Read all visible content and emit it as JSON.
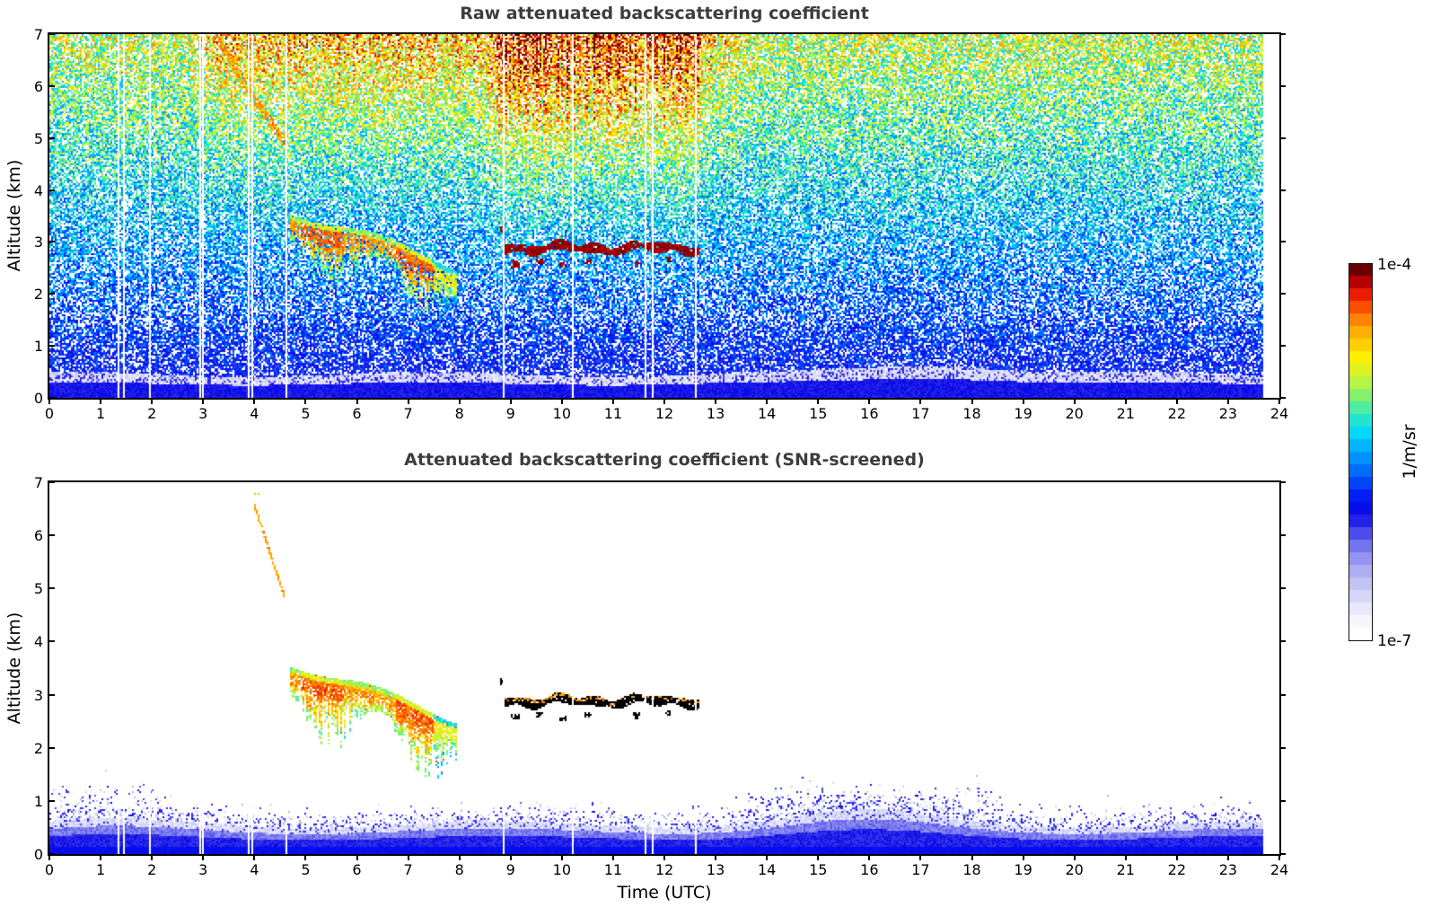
{
  "figure": {
    "background": "#ffffff",
    "title_color": "#3d3d3d"
  },
  "chart_data": {
    "type": "heatmap",
    "panels": [
      {
        "id": "raw",
        "title": "Raw attenuated backscattering coefficient",
        "xlabel": "",
        "ylabel": "Altitude (km)",
        "xlim": [
          0,
          24
        ],
        "ylim": [
          0,
          7
        ],
        "xticks": [
          0,
          1,
          2,
          3,
          4,
          5,
          6,
          7,
          8,
          9,
          10,
          11,
          12,
          13,
          14,
          15,
          16,
          17,
          18,
          19,
          20,
          21,
          22,
          23,
          24
        ],
        "yticks": [
          0,
          1,
          2,
          3,
          4,
          5,
          6,
          7
        ],
        "style": "raw_noisy",
        "description": "noisy backscatter: blue near surface grading to green/yellow/orange noise aloft"
      },
      {
        "id": "screened",
        "title": "Attenuated backscattering coefficient (SNR-screened)",
        "xlabel": "Time (UTC)",
        "ylabel": "Altitude (km)",
        "xlim": [
          0,
          24
        ],
        "ylim": [
          0,
          7
        ],
        "xticks": [
          0,
          1,
          2,
          3,
          4,
          5,
          6,
          7,
          8,
          9,
          10,
          11,
          12,
          13,
          14,
          15,
          16,
          17,
          18,
          19,
          20,
          21,
          22,
          23,
          24
        ],
        "yticks": [
          0,
          1,
          2,
          3,
          4,
          5,
          6,
          7
        ],
        "style": "snr_screened",
        "description": "white background; only boundary layer, aerosol plume and cloud retained"
      }
    ],
    "colorbar": {
      "label": "1/m/sr",
      "max_label": "1e-4",
      "min_label": "1e-7",
      "vmin": 1e-07,
      "vmax": 0.0001,
      "scale": "log",
      "steps": 30,
      "stops": [
        [
          0.0,
          255,
          255,
          255
        ],
        [
          0.05,
          242,
          242,
          252
        ],
        [
          0.1,
          216,
          216,
          248
        ],
        [
          0.16,
          183,
          183,
          244
        ],
        [
          0.22,
          140,
          140,
          240
        ],
        [
          0.28,
          72,
          72,
          236
        ],
        [
          0.33,
          8,
          8,
          230
        ],
        [
          0.38,
          0,
          30,
          245
        ],
        [
          0.44,
          0,
          100,
          255
        ],
        [
          0.5,
          0,
          165,
          255
        ],
        [
          0.55,
          0,
          215,
          250
        ],
        [
          0.6,
          45,
          235,
          195
        ],
        [
          0.65,
          125,
          240,
          115
        ],
        [
          0.7,
          200,
          245,
          55
        ],
        [
          0.76,
          255,
          238,
          0
        ],
        [
          0.82,
          255,
          185,
          0
        ],
        [
          0.87,
          255,
          120,
          0
        ],
        [
          0.92,
          250,
          40,
          0
        ],
        [
          0.96,
          195,
          0,
          0
        ],
        [
          1.0,
          108,
          0,
          0
        ]
      ]
    },
    "features": {
      "data_end_hour": 23.7,
      "gap_hours": [
        1.33,
        1.43,
        1.94,
        2.93,
        2.98,
        3.88,
        3.95,
        4.6,
        8.85,
        10.19,
        11.62,
        11.76,
        12.6
      ],
      "descending_streak": {
        "raw_start": [
          3.3,
          7.0
        ],
        "raw_end": [
          4.6,
          4.95
        ],
        "screened_start": [
          4.0,
          6.5
        ],
        "screened_end": [
          4.55,
          4.95
        ],
        "value_t": 0.82
      },
      "aerosol_plume": {
        "start_hour": 4.7,
        "end_hour": 7.95,
        "top_alt_start_km": 3.62,
        "slope_km_per_hour": -0.33,
        "typical_thickness_km": 0.9,
        "tail_min_alt_km": 1.55,
        "core_value_t": 0.8
      },
      "cloud_layer": {
        "start_hour": 8.85,
        "end_hour": 12.68,
        "alt_km": 2.88,
        "thickness_km": 0.18,
        "sub_blobs": [
          [
            9.02,
            9.18,
            2.58
          ],
          [
            9.5,
            9.62,
            2.62
          ],
          [
            9.95,
            10.08,
            2.55
          ],
          [
            10.45,
            10.58,
            2.62
          ],
          [
            11.38,
            11.52,
            2.6
          ],
          [
            12.02,
            12.12,
            2.66
          ]
        ],
        "dot": [
          8.83,
          3.24
        ],
        "raw_value_t": 0.97,
        "screened_color": "#000000"
      },
      "boundary_layer": {
        "mean_top_km": 0.5,
        "bump_hour": 16.3,
        "bump_top_km": 0.82
      }
    }
  }
}
